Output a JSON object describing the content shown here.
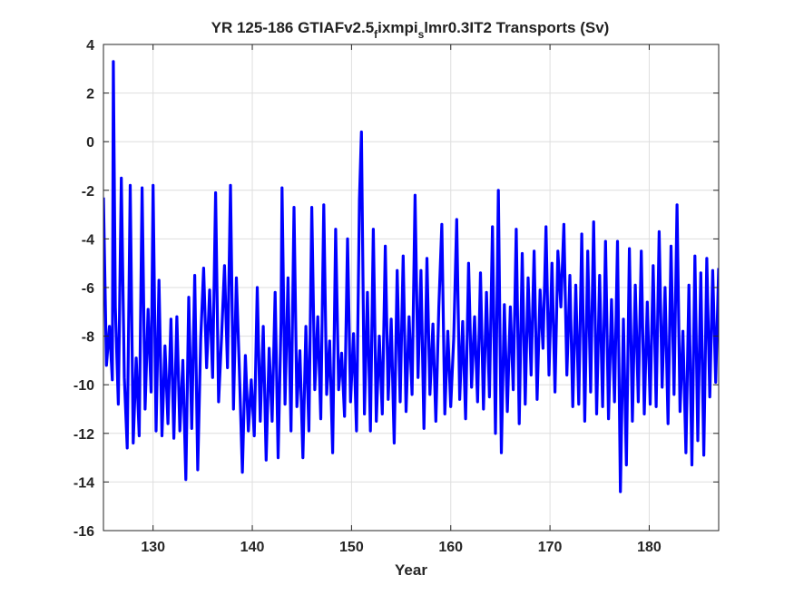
{
  "chart_data": {
    "type": "line",
    "title": "YR 125-186 GTIAFv2.5",
    "title_sub1": "f",
    "title_mid": "ixmpi",
    "title_sub2": "s",
    "title_end": "lmr0.3IT2 Transports (Sv)",
    "xlabel": "Year",
    "ylabel": "",
    "xlim": [
      125,
      187
    ],
    "ylim": [
      -16,
      4
    ],
    "xticks": [
      130,
      140,
      150,
      160,
      170,
      180
    ],
    "yticks": [
      4,
      2,
      0,
      -2,
      -4,
      -6,
      -8,
      -10,
      -12,
      -14,
      -16
    ],
    "grid": true,
    "series": [
      {
        "color": "#0000ff",
        "x": [
          125.0,
          125.3,
          125.6,
          125.9,
          126.0,
          126.2,
          126.5,
          126.8,
          127.1,
          127.4,
          127.7,
          128.0,
          128.3,
          128.6,
          128.9,
          129.2,
          129.5,
          129.8,
          130.0,
          130.3,
          130.6,
          130.9,
          131.2,
          131.5,
          131.8,
          132.1,
          132.4,
          132.7,
          133.0,
          133.3,
          133.6,
          133.9,
          134.2,
          134.5,
          134.8,
          135.1,
          135.4,
          135.7,
          136.0,
          136.3,
          136.6,
          136.9,
          137.2,
          137.5,
          137.8,
          138.1,
          138.4,
          138.7,
          139.0,
          139.3,
          139.6,
          139.9,
          140.2,
          140.5,
          140.8,
          141.1,
          141.4,
          141.7,
          142.0,
          142.3,
          142.6,
          142.9,
          143.0,
          143.3,
          143.6,
          143.9,
          144.2,
          144.5,
          144.8,
          145.1,
          145.4,
          145.7,
          146.0,
          146.3,
          146.6,
          146.9,
          147.2,
          147.5,
          147.8,
          148.1,
          148.4,
          148.7,
          149.0,
          149.3,
          149.6,
          149.9,
          150.2,
          150.5,
          150.8,
          151.0,
          151.3,
          151.6,
          151.9,
          152.2,
          152.5,
          152.8,
          153.1,
          153.4,
          153.7,
          154.0,
          154.3,
          154.6,
          154.9,
          155.2,
          155.5,
          155.8,
          156.1,
          156.4,
          156.7,
          157.0,
          157.3,
          157.6,
          157.9,
          158.2,
          158.5,
          158.8,
          159.1,
          159.4,
          159.7,
          160.0,
          160.3,
          160.6,
          160.9,
          161.2,
          161.5,
          161.8,
          162.1,
          162.4,
          162.7,
          163.0,
          163.3,
          163.6,
          163.9,
          164.2,
          164.5,
          164.8,
          165.1,
          165.4,
          165.7,
          166.0,
          166.3,
          166.6,
          166.9,
          167.2,
          167.5,
          167.8,
          168.1,
          168.4,
          168.7,
          169.0,
          169.3,
          169.6,
          169.9,
          170.2,
          170.5,
          170.8,
          171.1,
          171.4,
          171.7,
          172.0,
          172.3,
          172.6,
          172.9,
          173.2,
          173.5,
          173.8,
          174.1,
          174.4,
          174.7,
          175.0,
          175.3,
          175.6,
          175.9,
          176.2,
          176.5,
          176.8,
          177.1,
          177.4,
          177.7,
          178.0,
          178.3,
          178.6,
          178.9,
          179.2,
          179.5,
          179.8,
          180.1,
          180.4,
          180.7,
          181.0,
          181.3,
          181.6,
          181.9,
          182.2,
          182.5,
          182.8,
          183.1,
          183.4,
          183.7,
          184.0,
          184.3,
          184.6,
          184.9,
          185.2,
          185.5,
          185.8,
          186.1,
          186.4,
          186.7,
          187.0
        ],
        "y": [
          -2.3,
          -9.2,
          -7.6,
          -9.8,
          3.3,
          -6.8,
          -10.8,
          -1.5,
          -9.7,
          -12.6,
          -1.8,
          -12.4,
          -8.9,
          -12.1,
          -1.9,
          -11.0,
          -6.9,
          -10.3,
          -1.8,
          -11.9,
          -5.7,
          -12.1,
          -8.4,
          -11.6,
          -7.3,
          -12.2,
          -7.2,
          -11.9,
          -9.0,
          -13.9,
          -6.4,
          -11.8,
          -5.5,
          -13.5,
          -8.1,
          -5.2,
          -9.3,
          -6.1,
          -9.7,
          -2.1,
          -10.7,
          -8.1,
          -5.1,
          -9.3,
          -1.8,
          -11.0,
          -5.6,
          -9.4,
          -13.6,
          -8.8,
          -11.9,
          -9.8,
          -12.1,
          -6.0,
          -11.5,
          -7.6,
          -13.1,
          -8.5,
          -11.5,
          -6.2,
          -13.0,
          -7.4,
          -1.9,
          -10.8,
          -5.6,
          -11.9,
          -2.7,
          -10.9,
          -8.6,
          -13.0,
          -7.6,
          -11.9,
          -2.7,
          -10.2,
          -7.2,
          -11.4,
          -2.6,
          -10.4,
          -8.2,
          -12.8,
          -3.6,
          -10.2,
          -8.7,
          -11.3,
          -4.0,
          -10.7,
          -7.9,
          -11.9,
          -2.4,
          0.4,
          -11.2,
          -6.2,
          -11.9,
          -3.6,
          -11.5,
          -8.0,
          -11.2,
          -4.3,
          -10.6,
          -7.3,
          -12.4,
          -5.3,
          -10.7,
          -4.7,
          -11.1,
          -7.2,
          -10.4,
          -2.2,
          -9.7,
          -5.3,
          -11.8,
          -4.8,
          -10.4,
          -7.5,
          -11.5,
          -6.8,
          -3.4,
          -11.2,
          -7.8,
          -10.9,
          -8.1,
          -3.2,
          -10.6,
          -7.4,
          -11.4,
          -5.0,
          -10.1,
          -7.2,
          -10.7,
          -5.4,
          -11.0,
          -6.2,
          -10.5,
          -3.5,
          -12.0,
          -2.0,
          -12.8,
          -6.7,
          -11.1,
          -6.8,
          -10.2,
          -3.6,
          -11.6,
          -4.6,
          -10.8,
          -5.6,
          -9.6,
          -4.5,
          -10.6,
          -6.1,
          -8.5,
          -3.5,
          -9.6,
          -5.0,
          -10.3,
          -4.5,
          -6.8,
          -3.4,
          -9.6,
          -5.5,
          -10.9,
          -5.9,
          -10.8,
          -3.8,
          -11.5,
          -4.5,
          -10.3,
          -3.3,
          -11.2,
          -5.5,
          -10.9,
          -4.1,
          -11.4,
          -6.5,
          -10.7,
          -4.1,
          -14.4,
          -7.3,
          -13.3,
          -4.4,
          -11.5,
          -5.9,
          -10.7,
          -4.5,
          -11.2,
          -6.6,
          -10.8,
          -5.1,
          -10.9,
          -3.7,
          -10.1,
          -6.0,
          -11.6,
          -4.3,
          -10.4,
          -2.6,
          -11.1,
          -7.8,
          -12.8,
          -5.9,
          -13.3,
          -4.7,
          -12.3,
          -5.4,
          -12.9,
          -4.8,
          -10.5,
          -5.3,
          -9.9,
          -5.2
        ]
      }
    ]
  }
}
